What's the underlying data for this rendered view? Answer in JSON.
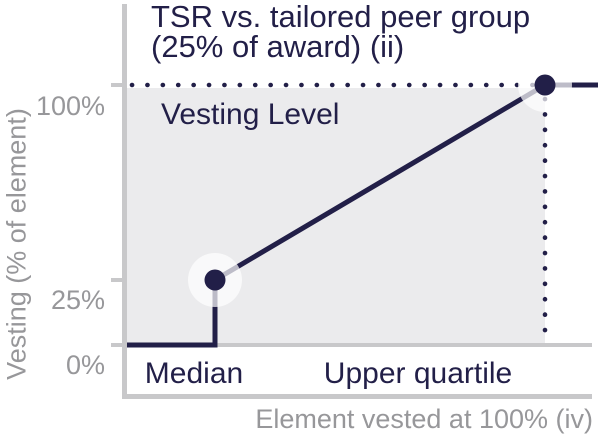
{
  "figure": {
    "title_lines": [
      "TSR vs. tailored peer group",
      "(25% of award) (ii)"
    ]
  },
  "colors": {
    "navy": "#221f48",
    "gray_text": "#97979a",
    "axis_gray": "#c8c8ca",
    "plot_bg": "#ebebed",
    "halo": "rgba(255,255,255,0.7)"
  },
  "chart_data": {
    "type": "line",
    "title": "TSR vs. tailored peer group (25% of award) (ii)",
    "xlabel": "Element vested at 100% (iv)",
    "ylabel": "Vesting (% of element)",
    "annotation": "Vesting Level",
    "ylim": [
      0,
      100
    ],
    "grid": false,
    "legend_position": "none",
    "yticks": [
      {
        "value": 100,
        "label": "100%"
      },
      {
        "value": 25,
        "label": "25%"
      },
      {
        "value": 0,
        "label": "0%"
      }
    ],
    "xticks": [
      {
        "key": "median",
        "label": "Median"
      },
      {
        "key": "upper_quartile",
        "label": "Upper quartile"
      }
    ],
    "series": [
      {
        "name": "Vesting Level",
        "points": [
          {
            "x": "axis_start",
            "y": 0
          },
          {
            "x": "median",
            "y": 0
          },
          {
            "x": "median",
            "y": 25
          },
          {
            "x": "upper_quartile",
            "y": 100
          },
          {
            "x": "line_end",
            "y": 100
          }
        ]
      }
    ],
    "markers": [
      {
        "x": "median",
        "y": 25
      },
      {
        "x": "upper_quartile",
        "y": 100
      }
    ],
    "reference_dotted_lines": [
      {
        "type": "horizontal",
        "y": 100,
        "from_x": "axis_start",
        "to_x": "upper_quartile"
      },
      {
        "type": "vertical",
        "x": "upper_quartile",
        "from_y": 0,
        "to_y": 100
      }
    ]
  }
}
